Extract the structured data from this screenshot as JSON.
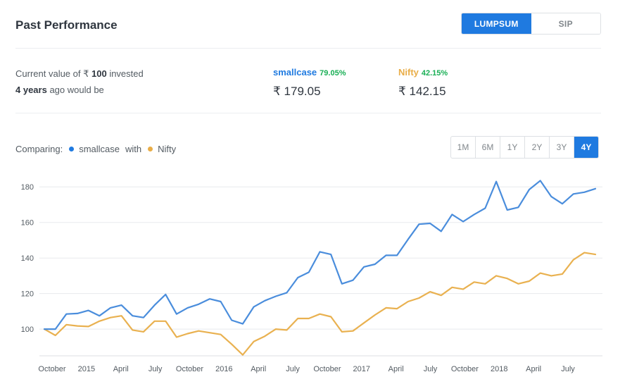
{
  "header": {
    "title": "Past Performance"
  },
  "mode_toggle": {
    "options": [
      "LUMPSUM",
      "SIP"
    ],
    "selected": "LUMPSUM"
  },
  "summary": {
    "line1_prefix": "Current value of ₹ ",
    "amount": "100",
    "line1_suffix": " invested",
    "period": "4 years",
    "line2_suffix": " ago would be"
  },
  "legend": [
    {
      "name": "smallcase",
      "pct": "79.05%",
      "value": "₹ 179.05",
      "color": "#1f7ae0"
    },
    {
      "name": "Nifty",
      "pct": "42.15%",
      "value": "₹ 142.15",
      "color": "#e9ad47"
    }
  ],
  "comparing": {
    "label": "Comparing:",
    "a": "smallcase",
    "with": "with",
    "b": "Nifty"
  },
  "range_toggle": {
    "options": [
      "1M",
      "6M",
      "1Y",
      "2Y",
      "3Y",
      "4Y"
    ],
    "selected": "4Y"
  },
  "colors": {
    "accent": "#1f7ae0",
    "smallcase": "#4a8ddc",
    "nifty": "#e9b150",
    "positive": "#19af55"
  },
  "chart_data": {
    "type": "line",
    "x_tick_labels": [
      "October",
      "2015",
      "April",
      "July",
      "October",
      "2016",
      "April",
      "July",
      "October",
      "2017",
      "April",
      "July",
      "October",
      "2018",
      "April",
      "July"
    ],
    "y_ticks": [
      100,
      120,
      140,
      160,
      180
    ],
    "ylim": [
      85,
      190
    ],
    "grid": true,
    "series": [
      {
        "name": "smallcase",
        "values": [
          100,
          100,
          108.5,
          108.8,
          110.5,
          107.5,
          112,
          113.5,
          107.5,
          106.5,
          113.5,
          119.5,
          108.5,
          112,
          114,
          117,
          115.5,
          105,
          103,
          112.5,
          116,
          118.5,
          120.5,
          129,
          132,
          143.5,
          142,
          125.5,
          127.5,
          135,
          136.5,
          141.5,
          141.5,
          150.5,
          159,
          159.5,
          155,
          164.5,
          160.5,
          164.5,
          168,
          183,
          167,
          168.5,
          178.5,
          183.5,
          174.5,
          170.5,
          176,
          177,
          179
        ]
      },
      {
        "name": "Nifty",
        "values": [
          100,
          96.5,
          102.5,
          101.8,
          101.5,
          104.5,
          106.5,
          107.5,
          99.5,
          98.5,
          104.5,
          104.5,
          95.5,
          97.5,
          99,
          98,
          97,
          91.5,
          85.5,
          93,
          96,
          100,
          99.5,
          106,
          106,
          108.5,
          107,
          98.5,
          99,
          103.5,
          108,
          112,
          111.5,
          115.5,
          117.5,
          121,
          119,
          123.5,
          122.5,
          126.5,
          125.5,
          130,
          128.5,
          125.5,
          127,
          131.5,
          130,
          131,
          139,
          143,
          142
        ]
      }
    ]
  }
}
